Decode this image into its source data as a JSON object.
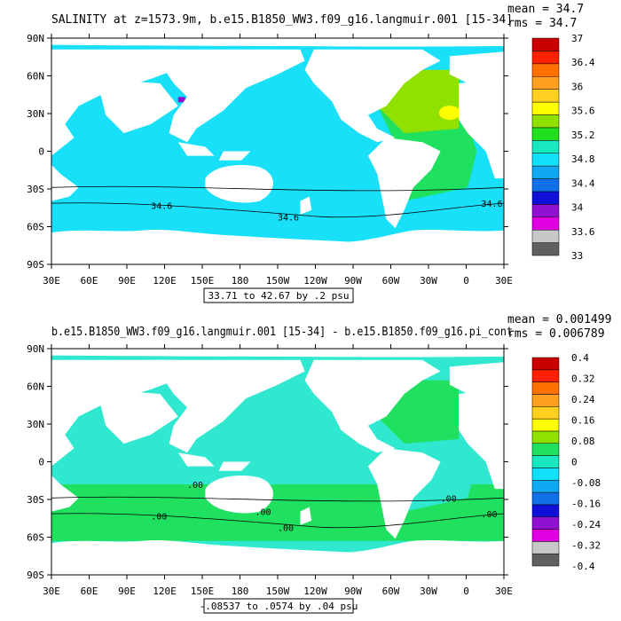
{
  "panels": [
    {
      "title": "SALINITY at z=1573.9m, b.e15.B1850_WW3.f09_g16.langmuir.001 [15-34]",
      "mean_text": "mean = 34.7",
      "rms_text": "rms = 34.7",
      "range_text": "33.71 to 42.67 by .2 psu",
      "lat_labels": [
        "90N",
        "60N",
        "30N",
        "0",
        "30S",
        "60S",
        "90S"
      ],
      "lon_labels": [
        "30E",
        "60E",
        "90E",
        "120E",
        "150E",
        "180",
        "150W",
        "120W",
        "90W",
        "60W",
        "30W",
        "0",
        "30E"
      ],
      "colorbar_labels": [
        "37",
        "36.4",
        "36",
        "35.6",
        "35.2",
        "34.8",
        "34.4",
        "34",
        "33.6",
        "33"
      ],
      "colorbar_colors": [
        "#606060",
        "#c8c8c8",
        "#e000e0",
        "#9010d0",
        "#1010d8",
        "#1070e8",
        "#10a8f0",
        "#10e0f8",
        "#18e8c0",
        "#20e020",
        "#90e000",
        "#ffff00",
        "#ffd020",
        "#ffa020",
        "#ff7000",
        "#ff2000",
        "#c80000"
      ],
      "contour_labels": [
        "34.6",
        "34.6",
        "34.6"
      ],
      "colors": {
        "ocean": "#18e0f8",
        "land": "#ffffff",
        "ocean_south": "#18e0f8",
        "atlantic": "#20e060",
        "north_atl": "#90e000",
        "hot": "#ffff00",
        "med": "#c80000",
        "red_sea": "#c80000",
        "deep_blue": "#10a8f0",
        "purple": "#9010d0"
      }
    },
    {
      "title": "b.e15.B1850_WW3.f09_g16.langmuir.001 [15-34] - b.e15.B1850.f09_g16.pi_cont",
      "mean_text": "mean = 0.001499",
      "rms_text": "rms = 0.006789",
      "range_text": "-.08537 to .0574 by .04 psu",
      "lat_labels": [
        "90N",
        "60N",
        "30N",
        "0",
        "30S",
        "60S",
        "90S"
      ],
      "lon_labels": [
        "30E",
        "60E",
        "90E",
        "120E",
        "150E",
        "180",
        "150W",
        "120W",
        "90W",
        "60W",
        "30W",
        "0",
        "30E"
      ],
      "colorbar_labels": [
        "0.4",
        "0.32",
        "0.24",
        "0.16",
        "0.08",
        "0",
        "-0.08",
        "-0.16",
        "-0.24",
        "-0.32",
        "-0.4"
      ],
      "colorbar_colors": [
        "#606060",
        "#c8c8c8",
        "#e000e0",
        "#9010d0",
        "#1010d8",
        "#1070e8",
        "#10a8f0",
        "#10e0f8",
        "#18e8c0",
        "#20e060",
        "#90e000",
        "#ffff00",
        "#ffd020",
        "#ffa020",
        "#ff7000",
        "#ff2000",
        "#c80000"
      ],
      "contour_labels": [
        ".00",
        ".00",
        ".00",
        ".00",
        ".00",
        ".00"
      ],
      "colors": {
        "ocean": "#30e8d0",
        "land": "#ffffff",
        "ocean_south": "#20e060",
        "atlantic": "#30e8d0",
        "north_atl": "#20e060",
        "hot": "#20e060",
        "med": "#20e060",
        "red_sea": "#20e060",
        "deep_blue": "#30e8d0",
        "purple": "#30e8d0"
      }
    }
  ]
}
